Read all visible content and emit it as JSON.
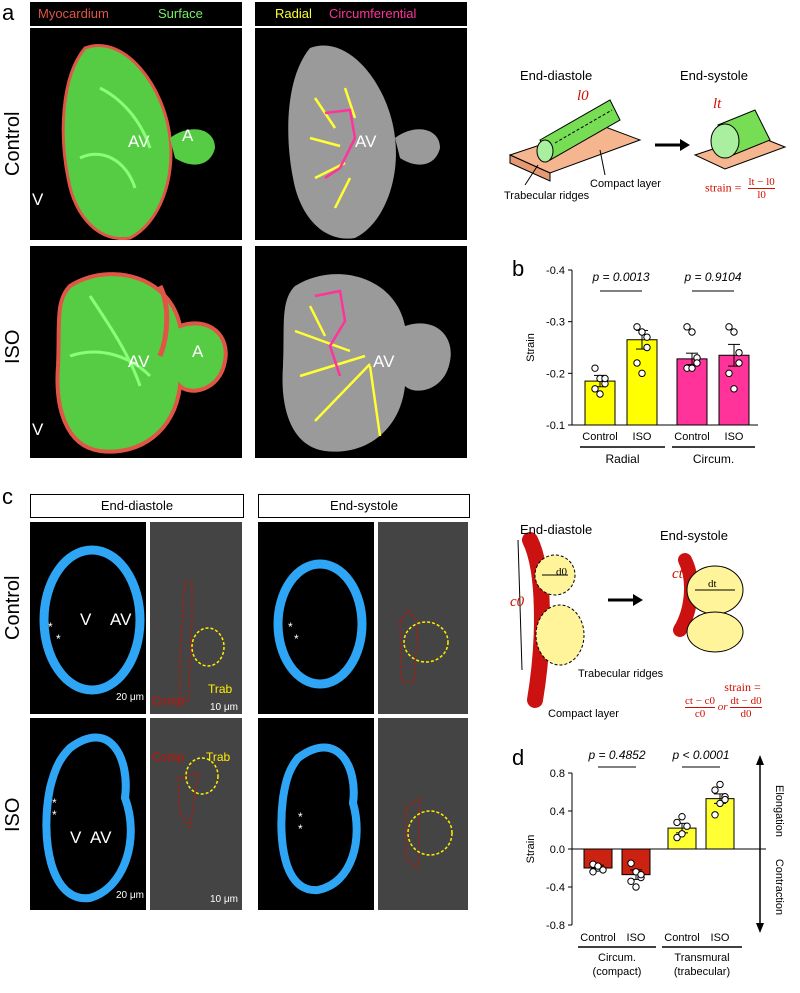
{
  "panel_letters": {
    "a": "a",
    "b": "b",
    "c": "c",
    "d": "d"
  },
  "panel_a": {
    "legend_left": {
      "myocardium": "Myocardium",
      "surface": "Surface"
    },
    "legend_right": {
      "radial": "Radial",
      "circumferential": "Circumferential"
    },
    "row_labels": {
      "control": "Control",
      "iso": "ISO"
    },
    "image_labels": {
      "av": "AV",
      "a": "A",
      "v": "V"
    },
    "colors": {
      "myocardium": "#e05545",
      "surface": "#77ee66",
      "radial": "#ffff33",
      "circumferential": "#ff3399"
    },
    "schematic": {
      "end_diastole": "End-diastole",
      "end_systole": "End-systole",
      "l0": "l0",
      "lt": "lt",
      "trabecular_ridges": "Trabecular ridges",
      "compact_layer": "Compact layer",
      "strain_eq": "strain =",
      "strain_num": "lt − l0",
      "strain_den": "l0"
    }
  },
  "panel_b": {
    "ylabel": "Strain",
    "yticks": [
      "-0.4",
      "-0.3",
      "-0.2",
      "-0.1"
    ],
    "p_values": [
      "p = 0.0013",
      "p = 0.9104"
    ],
    "group_labels": [
      "Radial",
      "Circum."
    ],
    "colors": {
      "radial": "#ffff00",
      "circum": "#ff3399"
    }
  },
  "panel_c": {
    "headers": {
      "end_diastole": "End-diastole",
      "end_systole": "End-systole"
    },
    "row_labels": {
      "control": "Control",
      "iso": "ISO"
    },
    "labels": {
      "v": "V",
      "av": "AV",
      "trab": "Trab",
      "comp": "Comp",
      "star": "*"
    },
    "scalebars": {
      "s20": "20 μm",
      "s10": "10 μm"
    },
    "schematic": {
      "end_diastole": "End-diastole",
      "end_systole": "End-systole",
      "c0": "c0",
      "d0": "d0",
      "ct": "ct",
      "dt": "dt",
      "trabecular_ridges": "Trabecular ridges",
      "compact_layer": "Compact layer",
      "strain_eq": "strain =",
      "f1_num": "ct − c0",
      "f1_den": "c0",
      "or": "or",
      "f2_num": "dt − d0",
      "f2_den": "d0"
    }
  },
  "panel_d": {
    "ylabel": "Strain",
    "yticks": [
      "0.8",
      "0.4",
      "0.0",
      "-0.4",
      "-0.8"
    ],
    "p_values": [
      "p = 0.4852",
      "p < 0.0001"
    ],
    "group_labels": [
      "Circum.",
      "(compact)",
      "Transmural",
      "(trabecular)"
    ],
    "right_labels": {
      "elongation": "Elongation",
      "contraction": "Contraction"
    },
    "colors": {
      "compact": "#cc2211",
      "trab": "#ffff33"
    }
  },
  "chart_data": [
    {
      "type": "bar",
      "categories": [
        "Control",
        "ISO",
        "Control",
        "ISO"
      ],
      "groups": [
        "Radial",
        "Radial",
        "Circum.",
        "Circum."
      ],
      "values": [
        -0.185,
        -0.265,
        -0.228,
        -0.235
      ],
      "errors": [
        0.011,
        0.018,
        0.011,
        0.021
      ],
      "points": [
        [
          -0.21,
          -0.19,
          -0.18,
          -0.17,
          -0.16,
          -0.19
        ],
        [
          -0.29,
          -0.28,
          -0.25,
          -0.22,
          -0.2,
          -0.27
        ],
        [
          -0.29,
          -0.28,
          -0.23,
          -0.21,
          -0.21,
          -0.22
        ],
        [
          -0.29,
          -0.28,
          -0.22,
          -0.2,
          -0.17,
          -0.24
        ]
      ],
      "ylabel": "Strain",
      "ylim": [
        -0.1,
        -0.4
      ],
      "annotations": [
        "p = 0.0013",
        "p = 0.9104"
      ]
    },
    {
      "type": "bar",
      "categories": [
        "Control",
        "ISO",
        "Control",
        "ISO"
      ],
      "groups": [
        "Circum. (compact)",
        "Circum. (compact)",
        "Transmural (trabecular)",
        "Transmural (trabecular)"
      ],
      "values": [
        -0.2,
        -0.27,
        0.22,
        0.53
      ],
      "errors": [
        0.03,
        0.05,
        0.05,
        0.05
      ],
      "points": [
        [
          -0.16,
          -0.2,
          -0.22,
          -0.24,
          -0.18
        ],
        [
          -0.15,
          -0.24,
          -0.3,
          -0.34,
          -0.4,
          -0.27
        ],
        [
          0.12,
          0.16,
          0.24,
          0.28,
          0.34
        ],
        [
          0.36,
          0.48,
          0.55,
          0.62,
          0.68,
          0.52
        ]
      ],
      "ylabel": "Strain",
      "ylim": [
        -0.8,
        0.8
      ],
      "annotations": [
        "p = 0.4852",
        "p < 0.0001"
      ]
    }
  ]
}
